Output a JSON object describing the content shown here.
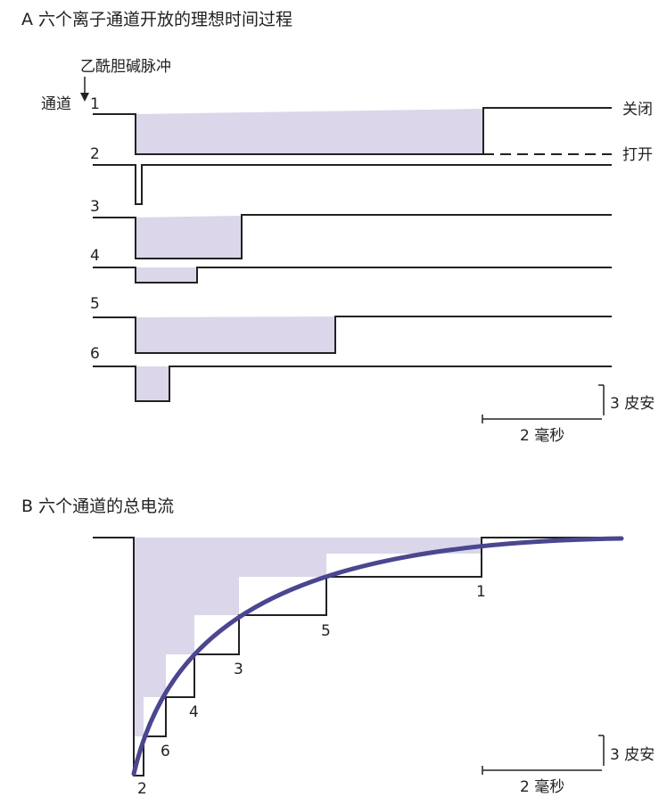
{
  "panel_a": {
    "title": "A 六个离子通道开放的理想时间过程",
    "stimulus_label": "乙酰胆碱脉冲",
    "channel_axis_label": "通道",
    "channel_numbers": [
      "1",
      "2",
      "3",
      "4",
      "5",
      "6"
    ],
    "state_closed": "关闭",
    "state_open": "打开",
    "scale_current": "3 皮安",
    "scale_time": "2 毫秒"
  },
  "panel_b": {
    "title": "B 六个通道的总电流",
    "step_labels": [
      "1",
      "5",
      "3",
      "4",
      "6",
      "2"
    ],
    "scale_current": "3 皮安",
    "scale_time": "2 毫秒"
  },
  "colors": {
    "open_fill": "#dcd6ea",
    "trace": "#222222",
    "fit_curve": "#4a4690"
  }
}
